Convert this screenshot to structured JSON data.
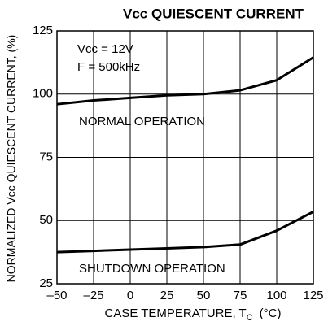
{
  "chart_data": {
    "type": "line",
    "title": "Vcc QUIESCENT CURRENT",
    "y_label": "NORMALIZED Vcc QUIESCENT CURRENT, (%)",
    "x_label": [
      "CASE TEMPERATURE, T",
      "C",
      "(°C)"
    ],
    "x": [
      -50,
      -25,
      0,
      25,
      50,
      75,
      100,
      125
    ],
    "series": [
      {
        "name": "NORMAL OPERATION",
        "color": "#000000",
        "values": [
          96,
          97.5,
          98.5,
          99.5,
          100,
          101.5,
          105.5,
          114.5
        ]
      },
      {
        "name": "SHUTDOWN OPERATION",
        "color": "#000000",
        "values": [
          37.5,
          38,
          38.5,
          39,
          39.5,
          40.5,
          46,
          53.5
        ]
      }
    ],
    "annotations": [
      "Vcc = 12V",
      "F = 500kHz"
    ],
    "xlim": [
      -50,
      125
    ],
    "xticks": [
      {
        "value": -50,
        "label": "–50"
      },
      {
        "value": -25,
        "label": "–25"
      },
      0,
      25,
      50,
      75,
      100,
      125
    ],
    "ylim": [
      25,
      125
    ],
    "yticks": [
      25,
      50,
      75,
      100,
      125
    ],
    "grid": true
  }
}
